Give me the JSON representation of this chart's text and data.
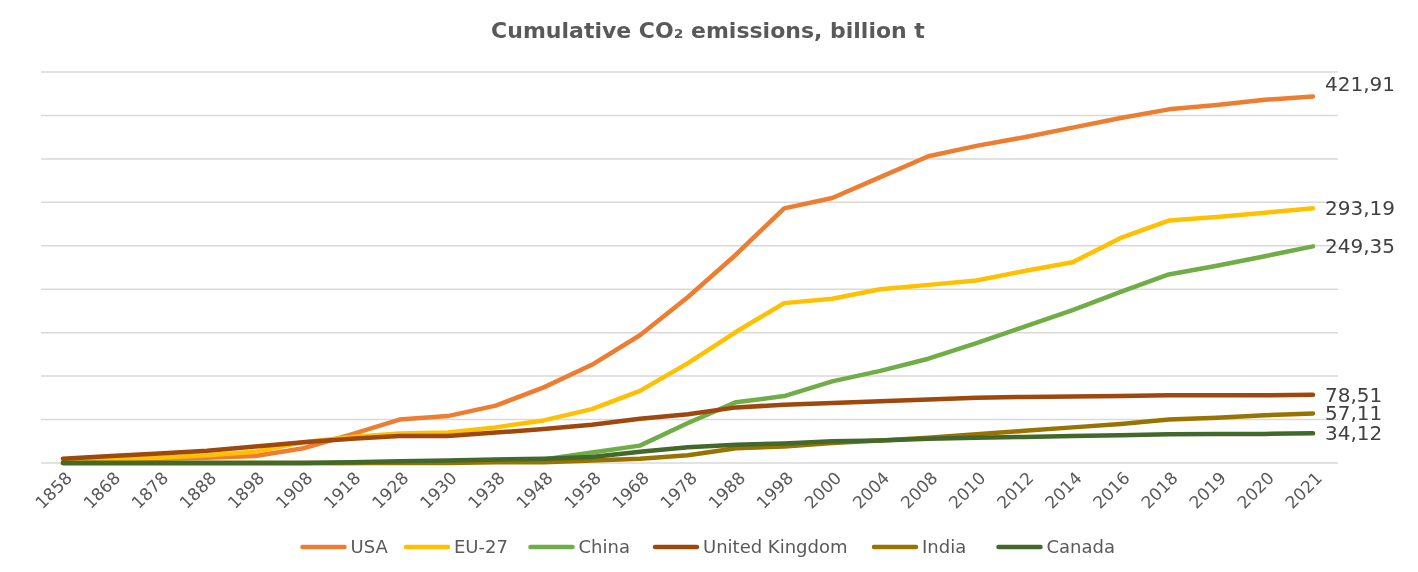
{
  "chart_data": {
    "type": "line",
    "title": "Cumulative CO₂ emissions, billion t",
    "categories": [
      "1858",
      "1868",
      "1878",
      "1888",
      "1898",
      "1908",
      "1918",
      "1928",
      "1930",
      "1938",
      "1948",
      "1958",
      "1968",
      "1978",
      "1988",
      "1998",
      "2000",
      "2004",
      "2008",
      "2010",
      "2012",
      "2014",
      "2016",
      "2018",
      "2019",
      "2020",
      "2021"
    ],
    "ylim": [
      0,
      450
    ],
    "yticks": [
      {
        "value": 0,
        "label": null
      },
      {
        "value": 50,
        "label": null
      },
      {
        "value": 100,
        "label": null
      },
      {
        "value": 150,
        "label": null
      },
      {
        "value": 200,
        "label": null
      },
      {
        "value": 250,
        "label": null
      },
      {
        "value": 300,
        "label": null
      },
      {
        "value": 350,
        "label": null
      },
      {
        "value": 400,
        "label": null
      },
      {
        "value": 450,
        "label": null
      }
    ],
    "tick_labels": "x",
    "grid": "y",
    "legend": "bottom",
    "marker": "none",
    "line_style": "solid",
    "series": [
      {
        "name": "USA",
        "color": "#ed7d31",
        "values": [
          3,
          4,
          5,
          6,
          8,
          17,
          33,
          50,
          54,
          66,
          87,
          113,
          147,
          191,
          240,
          293,
          305,
          329,
          353,
          365,
          375,
          386,
          397,
          407,
          412,
          418,
          421.91
        ],
        "value_labels": [
          null,
          null,
          null,
          null,
          null,
          null,
          null,
          null,
          null,
          null,
          null,
          null,
          null,
          null,
          null,
          null,
          null,
          null,
          null,
          null,
          null,
          null,
          null,
          null,
          null,
          null,
          "421,91"
        ]
      },
      {
        "name": "EU-27",
        "color": "#ffc000",
        "values": [
          2,
          4,
          6,
          9,
          13,
          24,
          30,
          34,
          35,
          41,
          49,
          62,
          83,
          115,
          151,
          184,
          189,
          200,
          205,
          210,
          221,
          231,
          259,
          279,
          283,
          288,
          293.19
        ],
        "value_labels": [
          null,
          null,
          null,
          null,
          null,
          null,
          null,
          null,
          null,
          null,
          null,
          null,
          null,
          null,
          null,
          null,
          null,
          null,
          null,
          null,
          null,
          null,
          null,
          null,
          null,
          null,
          "293,19"
        ]
      },
      {
        "name": "China",
        "color": "#70ad47",
        "values": [
          0,
          0,
          0,
          0,
          0,
          0,
          0,
          1,
          1,
          2,
          4,
          12,
          20,
          46,
          70,
          77,
          94,
          106,
          120,
          138,
          157,
          176,
          197,
          217,
          227,
          238,
          249.35
        ],
        "value_labels": [
          null,
          null,
          null,
          null,
          null,
          null,
          null,
          null,
          null,
          null,
          null,
          null,
          null,
          null,
          null,
          null,
          null,
          null,
          null,
          null,
          null,
          null,
          null,
          null,
          null,
          null,
          "249,35"
        ]
      },
      {
        "name": "United Kingdom",
        "color": "#9e480e",
        "values": [
          5,
          8,
          11,
          14,
          19,
          24,
          28,
          31,
          31,
          35,
          39,
          44,
          51,
          56,
          64,
          67,
          69,
          71,
          73,
          75,
          76,
          76.5,
          77,
          78,
          78,
          78,
          78.51
        ],
        "value_labels": [
          null,
          null,
          null,
          null,
          null,
          null,
          null,
          null,
          null,
          null,
          null,
          null,
          null,
          null,
          null,
          null,
          null,
          null,
          null,
          null,
          null,
          null,
          null,
          null,
          null,
          null,
          "78,51"
        ]
      },
      {
        "name": "India",
        "color": "#997300",
        "values": [
          0,
          0,
          0,
          0,
          0,
          0,
          0,
          0,
          0,
          1,
          1,
          3,
          5,
          9,
          17,
          19,
          23,
          26,
          29,
          33,
          37,
          41,
          45,
          50,
          52,
          55,
          57.11
        ],
        "value_labels": [
          null,
          null,
          null,
          null,
          null,
          null,
          null,
          null,
          null,
          null,
          null,
          null,
          null,
          null,
          null,
          null,
          null,
          null,
          null,
          null,
          null,
          null,
          null,
          null,
          null,
          null,
          "57,11"
        ]
      },
      {
        "name": "Canada",
        "color": "#43682b",
        "values": [
          0,
          0,
          0,
          0,
          0,
          0,
          1,
          2,
          3,
          4,
          5,
          7,
          13,
          18,
          21,
          22.5,
          25,
          26,
          28,
          29,
          30,
          31,
          32,
          33,
          33.5,
          33.5,
          34.12
        ],
        "value_labels": [
          null,
          null,
          null,
          null,
          null,
          null,
          null,
          null,
          null,
          null,
          null,
          null,
          null,
          null,
          null,
          null,
          null,
          null,
          null,
          null,
          null,
          null,
          null,
          null,
          null,
          null,
          "34,12"
        ]
      }
    ]
  }
}
